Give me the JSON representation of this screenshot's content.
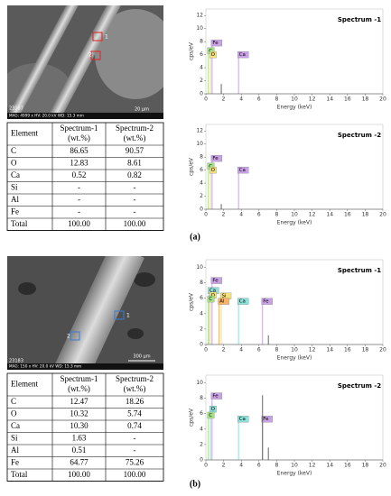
{
  "panels": [
    {
      "label": "(a)",
      "image": {
        "markers": [
          "1",
          "2"
        ],
        "id": "23187",
        "caption": "MAG: 4999 x  HV: 20.0 kV  WD: 15.3 mm",
        "scale": "20 μm"
      },
      "table": {
        "header": [
          [
            "Element"
          ],
          [
            "Spectrum-1",
            "(wt.%)"
          ],
          [
            "Spectrum-2",
            "(wt.%)"
          ]
        ],
        "rows": [
          [
            "C",
            "86.65",
            "90.57"
          ],
          [
            "O",
            "12.83",
            "8.61"
          ],
          [
            "Ca",
            "0.52",
            "0.82"
          ],
          [
            "Si",
            "-",
            "-"
          ],
          [
            "Al",
            "-",
            "-"
          ],
          [
            "Fe",
            "-",
            "-"
          ],
          [
            "Total",
            "100.00",
            "100.00"
          ]
        ]
      },
      "spectra": [
        {
          "title": "Spectrum -1",
          "xlabel": "Energy (keV)",
          "ylabel": "cps/eV",
          "xlim": [
            0,
            20
          ],
          "xticks": [
            0,
            2,
            4,
            6,
            8,
            10,
            12,
            14,
            16,
            18,
            20
          ],
          "ylim": [
            0,
            13
          ],
          "yticks": [
            0,
            2,
            4,
            6,
            8,
            10,
            12
          ],
          "peaks": [
            {
              "label": "Fe",
              "x": 0.7,
              "y": 7.8,
              "color": "#c9a2e6"
            },
            {
              "label": "C",
              "x": 0.28,
              "y": 6.6,
              "color": "#a6e08a"
            },
            {
              "label": "O",
              "x": 0.52,
              "y": 6.0,
              "color": "#f4e27a"
            },
            {
              "label": null,
              "x": 1.74,
              "y": 1.5,
              "color": "#666666"
            },
            {
              "label": "Ca",
              "x": 3.69,
              "y": 6.0,
              "color": "#c9a2e6"
            }
          ]
        },
        {
          "title": "Spectrum -2",
          "xlabel": "Energy (keV)",
          "ylabel": "cps/eV",
          "xlim": [
            0,
            20
          ],
          "xticks": [
            0,
            2,
            4,
            6,
            8,
            10,
            12,
            14,
            16,
            18,
            20
          ],
          "ylim": [
            0,
            13
          ],
          "yticks": [
            0,
            2,
            4,
            6,
            8,
            10,
            12
          ],
          "peaks": [
            {
              "label": "Fe",
              "x": 0.7,
              "y": 7.8,
              "color": "#c9a2e6"
            },
            {
              "label": "C",
              "x": 0.28,
              "y": 6.6,
              "color": "#a6e08a"
            },
            {
              "label": "O",
              "x": 0.52,
              "y": 6.0,
              "color": "#f4e27a"
            },
            {
              "label": null,
              "x": 1.74,
              "y": 0.8,
              "color": "#666666"
            },
            {
              "label": "Ca",
              "x": 3.69,
              "y": 6.0,
              "color": "#c9a2e6"
            }
          ]
        }
      ]
    },
    {
      "label": "(b)",
      "image": {
        "markers": [
          "1",
          "2"
        ],
        "id": "23183",
        "caption": "MAG: 150 x  HV: 20.0 kV  WD: 15.3 mm",
        "scale": "300 μm"
      },
      "table": {
        "header": [
          [
            "Element"
          ],
          [
            "Spectrum-1",
            "(wt.%)"
          ],
          [
            "Spectrum-2",
            "(wt.%)"
          ]
        ],
        "rows": [
          [
            "C",
            "12.47",
            "18.26"
          ],
          [
            "O",
            "10.32",
            "5.74"
          ],
          [
            "Ca",
            "10.30",
            "0.74"
          ],
          [
            "Si",
            "1.63",
            "-"
          ],
          [
            "Al",
            "0.51",
            "-"
          ],
          [
            "Fe",
            "64.77",
            "75.26"
          ],
          [
            "Total",
            "100.00",
            "100.00"
          ]
        ]
      },
      "spectra": [
        {
          "title": "Spectrum -1",
          "xlabel": "Energy (keV)",
          "ylabel": "cps/eV",
          "xlim": [
            0,
            20
          ],
          "xticks": [
            0,
            2,
            4,
            6,
            8,
            10,
            12,
            14,
            16,
            18,
            20
          ],
          "ylim": [
            0,
            11
          ],
          "yticks": [
            0,
            2,
            4,
            6,
            8,
            10
          ],
          "peaks": [
            {
              "label": "Fe",
              "x": 0.7,
              "y": 8.3,
              "color": "#c9a2e6"
            },
            {
              "label": "Ca",
              "x": 0.34,
              "y": 7.0,
              "color": "#8fe0d8"
            },
            {
              "label": "O",
              "x": 0.52,
              "y": 6.4,
              "color": "#f4e27a"
            },
            {
              "label": "C",
              "x": 0.28,
              "y": 5.9,
              "color": "#a6e08a"
            },
            {
              "label": "Si",
              "x": 1.74,
              "y": 6.3,
              "color": "#f4e27a"
            },
            {
              "label": "Al",
              "x": 1.49,
              "y": 5.6,
              "color": "#f5b36b"
            },
            {
              "label": "Ca",
              "x": 3.69,
              "y": 5.6,
              "color": "#8fe0d8"
            },
            {
              "label": "Fe",
              "x": 6.4,
              "y": 5.6,
              "color": "#c9a2e6"
            },
            {
              "label": null,
              "x": 7.06,
              "y": 1.2,
              "color": "#666666"
            }
          ]
        },
        {
          "title": "Spectrum -2",
          "xlabel": "Energy (keV)",
          "ylabel": "cps/eV",
          "xlim": [
            0,
            20
          ],
          "xticks": [
            0,
            2,
            4,
            6,
            8,
            10,
            12,
            14,
            16,
            18,
            20
          ],
          "ylim": [
            0,
            11
          ],
          "yticks": [
            0,
            2,
            4,
            6,
            8,
            10
          ],
          "peaks": [
            {
              "label": "Fe",
              "x": 0.7,
              "y": 8.3,
              "color": "#c9a2e6"
            },
            {
              "label": "O",
              "x": 0.52,
              "y": 6.6,
              "color": "#8fe0d8"
            },
            {
              "label": "C",
              "x": 0.28,
              "y": 5.8,
              "color": "#a6e08a"
            },
            {
              "label": "Ca",
              "x": 3.69,
              "y": 5.3,
              "color": "#8fe0d8"
            },
            {
              "label": "Fe",
              "x": 6.4,
              "y": 5.3,
              "color": "#c9a2e6"
            },
            {
              "label": null,
              "x": 6.4,
              "y": 8.4,
              "color": "#666666"
            },
            {
              "label": null,
              "x": 7.06,
              "y": 1.6,
              "color": "#666666"
            }
          ]
        }
      ]
    }
  ]
}
